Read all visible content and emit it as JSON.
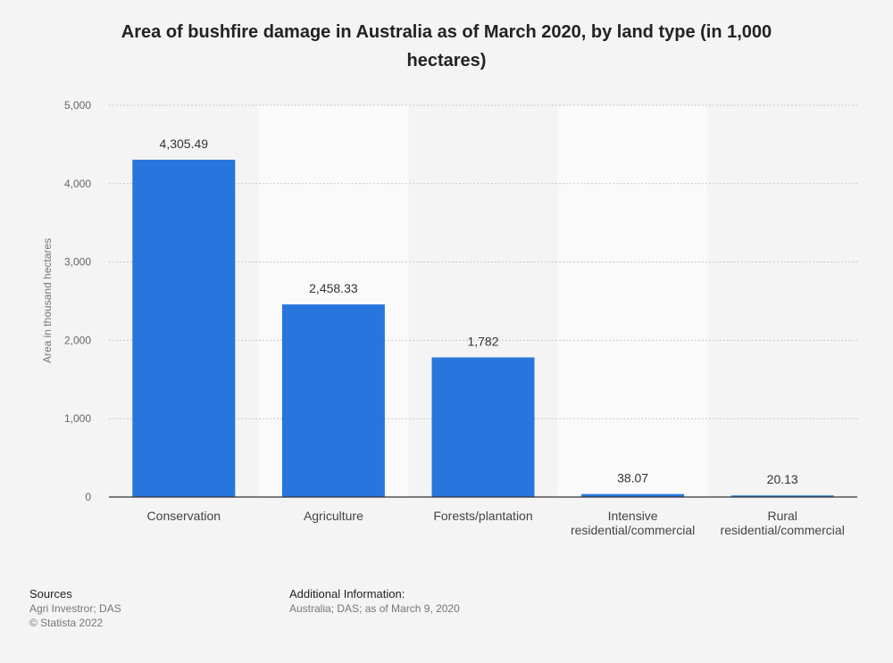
{
  "title": "Area of bushfire damage in Australia as of March 2020, by land type (in 1,000 hectares)",
  "chart_data": {
    "type": "bar",
    "title": "Area of bushfire damage in Australia as of March 2020, by land type (in 1,000 hectares)",
    "xlabel": "",
    "ylabel": "Area in thousand hectares",
    "categories": [
      [
        "Conservation"
      ],
      [
        "Agriculture"
      ],
      [
        "Forests/plantation"
      ],
      [
        "Intensive",
        "residential/commercial"
      ],
      [
        "Rural",
        "residential/commercial"
      ]
    ],
    "values": [
      4305.49,
      2458.33,
      1782,
      38.07,
      20.13
    ],
    "value_labels": [
      "4,305.49",
      "2,458.33",
      "1,782",
      "38.07",
      "20.13"
    ],
    "ylim": [
      0,
      5000
    ],
    "yticks": [
      0,
      1000,
      2000,
      3000,
      4000,
      5000
    ],
    "ytick_labels": [
      "0",
      "1,000",
      "2,000",
      "3,000",
      "4,000",
      "5,000"
    ],
    "grid": true,
    "bar_color": "#2876dd"
  },
  "footer": {
    "sources_heading": "Sources",
    "sources_lines": [
      "Agri Investror; DAS",
      "© Statista 2022"
    ],
    "additional_heading": "Additional Information:",
    "additional_text": "Australia; DAS; as of March 9, 2020"
  }
}
